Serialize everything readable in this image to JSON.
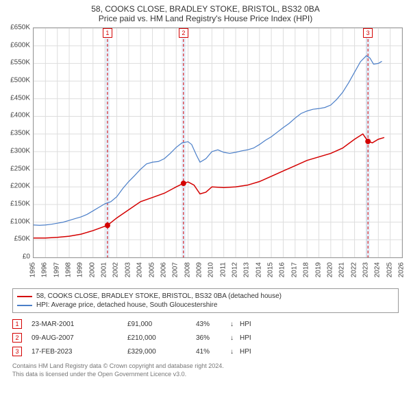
{
  "titles": {
    "line1": "58, COOKS CLOSE, BRADLEY STOKE, BRISTOL, BS32 0BA",
    "line2": "Price paid vs. HM Land Registry's House Price Index (HPI)"
  },
  "chart": {
    "type": "line",
    "background_color": "#ffffff",
    "border_color": "#999999",
    "grid_color": "#dddddd",
    "xlim": [
      1995,
      2026
    ],
    "ylim": [
      0,
      650000
    ],
    "ytick_step": 50000,
    "ytick_prefix": "£",
    "ytick_suffix": "K",
    "ytick_divisor": 1000,
    "xticks": [
      1995,
      1996,
      1997,
      1998,
      1999,
      2000,
      2001,
      2002,
      2003,
      2004,
      2005,
      2006,
      2007,
      2008,
      2009,
      2010,
      2011,
      2012,
      2013,
      2014,
      2015,
      2016,
      2017,
      2018,
      2019,
      2020,
      2021,
      2022,
      2023,
      2024,
      2025,
      2026
    ],
    "xtick_label_fontsize": 10,
    "ytick_label_fontsize": 10,
    "series": [
      {
        "name": "price_paid",
        "label": "58, COOKS CLOSE, BRADLEY STOKE, BRISTOL, BS32 0BA (detached house)",
        "color": "#d40000",
        "line_width": 1.5,
        "step": true,
        "data": [
          [
            1995.0,
            55000
          ],
          [
            1996.0,
            55000
          ],
          [
            1997.0,
            57000
          ],
          [
            1998.0,
            60000
          ],
          [
            1999.0,
            66000
          ],
          [
            2000.0,
            76000
          ],
          [
            2001.22,
            91000
          ],
          [
            2002.0,
            112000
          ],
          [
            2003.0,
            135000
          ],
          [
            2004.0,
            158000
          ],
          [
            2005.0,
            170000
          ],
          [
            2006.0,
            182000
          ],
          [
            2007.0,
            200000
          ],
          [
            2007.61,
            210000
          ],
          [
            2008.0,
            214000
          ],
          [
            2008.5,
            205000
          ],
          [
            2009.0,
            180000
          ],
          [
            2009.5,
            185000
          ],
          [
            2010.0,
            200000
          ],
          [
            2011.0,
            198000
          ],
          [
            2012.0,
            200000
          ],
          [
            2013.0,
            205000
          ],
          [
            2014.0,
            215000
          ],
          [
            2015.0,
            230000
          ],
          [
            2016.0,
            245000
          ],
          [
            2017.0,
            260000
          ],
          [
            2018.0,
            275000
          ],
          [
            2019.0,
            285000
          ],
          [
            2020.0,
            295000
          ],
          [
            2021.0,
            310000
          ],
          [
            2022.0,
            335000
          ],
          [
            2022.7,
            350000
          ],
          [
            2023.13,
            329000
          ],
          [
            2023.5,
            325000
          ],
          [
            2024.0,
            335000
          ],
          [
            2024.5,
            340000
          ]
        ]
      },
      {
        "name": "hpi",
        "label": "HPI: Average price, detached house, South Gloucestershire",
        "color": "#4a7ec8",
        "line_width": 1.2,
        "step": false,
        "data": [
          [
            1995.0,
            92000
          ],
          [
            1995.5,
            91000
          ],
          [
            1996.0,
            92000
          ],
          [
            1996.5,
            94000
          ],
          [
            1997.0,
            97000
          ],
          [
            1997.5,
            100000
          ],
          [
            1998.0,
            105000
          ],
          [
            1998.5,
            110000
          ],
          [
            1999.0,
            115000
          ],
          [
            1999.5,
            122000
          ],
          [
            2000.0,
            132000
          ],
          [
            2000.5,
            142000
          ],
          [
            2001.0,
            152000
          ],
          [
            2001.5,
            158000
          ],
          [
            2002.0,
            172000
          ],
          [
            2002.5,
            195000
          ],
          [
            2003.0,
            215000
          ],
          [
            2003.5,
            232000
          ],
          [
            2004.0,
            250000
          ],
          [
            2004.5,
            265000
          ],
          [
            2005.0,
            270000
          ],
          [
            2005.5,
            272000
          ],
          [
            2006.0,
            280000
          ],
          [
            2006.5,
            295000
          ],
          [
            2007.0,
            312000
          ],
          [
            2007.5,
            325000
          ],
          [
            2008.0,
            328000
          ],
          [
            2008.3,
            320000
          ],
          [
            2008.7,
            290000
          ],
          [
            2009.0,
            270000
          ],
          [
            2009.5,
            280000
          ],
          [
            2010.0,
            300000
          ],
          [
            2010.5,
            305000
          ],
          [
            2011.0,
            298000
          ],
          [
            2011.5,
            295000
          ],
          [
            2012.0,
            298000
          ],
          [
            2012.5,
            302000
          ],
          [
            2013.0,
            305000
          ],
          [
            2013.5,
            310000
          ],
          [
            2014.0,
            320000
          ],
          [
            2014.5,
            332000
          ],
          [
            2015.0,
            342000
          ],
          [
            2015.5,
            355000
          ],
          [
            2016.0,
            368000
          ],
          [
            2016.5,
            380000
          ],
          [
            2017.0,
            395000
          ],
          [
            2017.5,
            408000
          ],
          [
            2018.0,
            415000
          ],
          [
            2018.5,
            420000
          ],
          [
            2019.0,
            422000
          ],
          [
            2019.5,
            425000
          ],
          [
            2020.0,
            432000
          ],
          [
            2020.5,
            448000
          ],
          [
            2021.0,
            468000
          ],
          [
            2021.5,
            495000
          ],
          [
            2022.0,
            525000
          ],
          [
            2022.5,
            555000
          ],
          [
            2023.0,
            572000
          ],
          [
            2023.3,
            565000
          ],
          [
            2023.6,
            548000
          ],
          [
            2024.0,
            550000
          ],
          [
            2024.3,
            556000
          ]
        ]
      }
    ],
    "sale_markers": [
      {
        "n": "1",
        "x": 2001.22,
        "y": 91000,
        "color": "#d40000",
        "band_width_years": 0.35
      },
      {
        "n": "2",
        "x": 2007.61,
        "y": 210000,
        "color": "#d40000",
        "band_width_years": 0.35
      },
      {
        "n": "3",
        "x": 2023.13,
        "y": 329000,
        "color": "#d40000",
        "band_width_years": 0.35
      }
    ],
    "marker_radius": 4,
    "flag_border_color": "#d40000",
    "flag_text_color": "#d40000",
    "dash_color": "#d40000",
    "dash_pattern": "4 3"
  },
  "legend": {
    "rows": [
      {
        "color": "#d40000",
        "label": "58, COOKS CLOSE, BRADLEY STOKE, BRISTOL, BS32 0BA (detached house)"
      },
      {
        "color": "#4a7ec8",
        "label": "HPI: Average price, detached house, South Gloucestershire"
      }
    ]
  },
  "sales_table": {
    "arrow_glyph": "↓",
    "hpi_label": "HPI",
    "marker_border_color": "#d40000",
    "marker_text_color": "#d40000",
    "rows": [
      {
        "n": "1",
        "date": "23-MAR-2001",
        "price": "£91,000",
        "pct": "43%"
      },
      {
        "n": "2",
        "date": "09-AUG-2007",
        "price": "£210,000",
        "pct": "36%"
      },
      {
        "n": "3",
        "date": "17-FEB-2023",
        "price": "£329,000",
        "pct": "41%"
      }
    ]
  },
  "footer": {
    "line1": "Contains HM Land Registry data © Crown copyright and database right 2024.",
    "line2": "This data is licensed under the Open Government Licence v3.0."
  }
}
